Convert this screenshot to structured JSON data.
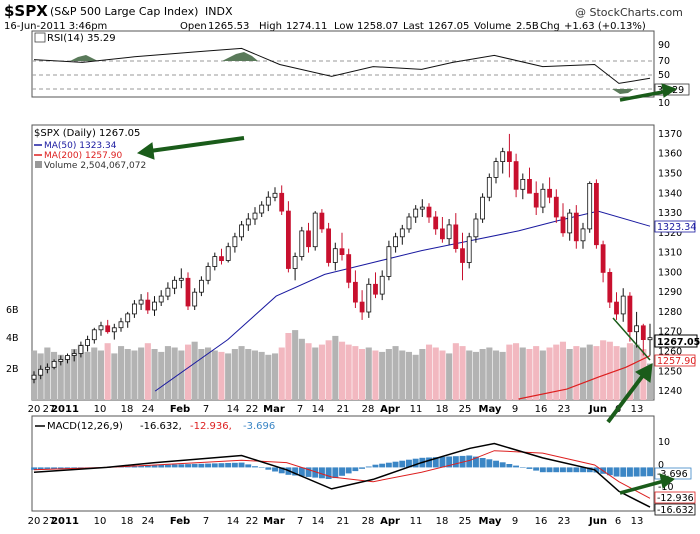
{
  "header": {
    "symbol": "$SPX",
    "name": "(S&P 500 Large Cap Index)",
    "exchange": "INDX",
    "watermark": "@ StockCharts.com",
    "date_time": "16-Jun-2011 3:46pm",
    "open_label": "Open",
    "open": "1265.53",
    "high_label": "High",
    "high": "1274.11",
    "low_label": "Low",
    "low": "1258.07",
    "last_label": "Last",
    "last": "1267.05",
    "volume_label": "Volume",
    "volume": "2.5B",
    "chg_label": "Chg",
    "chg": "+1.63 (+0.13%)"
  },
  "rsi_panel": {
    "legend": "RSI(14) 35.29",
    "scale_labels": [
      "90",
      "70",
      "50",
      "30",
      "10"
    ],
    "last_value": "35.29"
  },
  "price_panel": {
    "legend_title": "$SPX (Daily) 1267.05",
    "legend_ma50": "MA(50) 1323.34",
    "legend_ma200": "MA(200) 1257.90",
    "legend_volume": "Volume 2,504,067,072",
    "price_labels": [
      "1370",
      "1360",
      "1350",
      "1340",
      "1330",
      "1320",
      "1310",
      "1300",
      "1290",
      "1280",
      "1270",
      "1260",
      "1250",
      "1240"
    ],
    "volume_labels": [
      "6B",
      "4B",
      "2B"
    ],
    "tag_ma50": "1323.34",
    "tag_last": "1267.05",
    "tag_ma200": "1257.90"
  },
  "date_axis": {
    "labels": [
      "20",
      "27",
      "2011",
      "10",
      "18",
      "24",
      "Feb",
      "7",
      "14",
      "22",
      "Mar",
      "7",
      "14",
      "21",
      "28",
      "Apr",
      "11",
      "18",
      "25",
      "May",
      "9",
      "16",
      "23",
      "Jun",
      "6",
      "13"
    ]
  },
  "macd_panel": {
    "legend_name": "MACD(12,26,9)",
    "legend_macd": "-16.632,",
    "legend_signal": "-12.936,",
    "legend_hist": "-3.696",
    "scale_labels": [
      "10",
      "0",
      "-10"
    ],
    "tag_hist": "-3.696",
    "tag_signal": "-12.936",
    "tag_macd": "-16.632"
  },
  "colors": {
    "up_volume": "#f2b8c0",
    "gray_volume": "#b3b3b3",
    "ma50": "#1a1aa0",
    "ma200": "#dd1f1f",
    "candle_up": "#111111",
    "candle_down": "#c8102e",
    "histogram": "#3b86c5",
    "annotation_arrow": "#1a5c1a"
  },
  "chart_data": [
    {
      "type": "line",
      "name": "RSI(14)",
      "ylim": [
        0,
        100
      ],
      "guides": [
        70,
        50,
        30
      ],
      "x": [
        "2010-12-20",
        "2011-01-03",
        "2011-01-18",
        "2011-02-07",
        "2011-02-18",
        "2011-03-01",
        "2011-03-16",
        "2011-03-28",
        "2011-04-11",
        "2011-04-20",
        "2011-05-02",
        "2011-05-16",
        "2011-05-31",
        "2011-06-07",
        "2011-06-16"
      ],
      "values": [
        62,
        58,
        66,
        74,
        78,
        55,
        38,
        52,
        48,
        58,
        68,
        52,
        55,
        28,
        35.29
      ]
    },
    {
      "type": "candlestick",
      "title": "$SPX (Daily) 1267.05",
      "ylim": [
        1237,
        1373
      ],
      "candles": [
        [
          1246,
          1250,
          1244,
          1248
        ],
        [
          1248,
          1253,
          1246,
          1251
        ],
        [
          1251,
          1254,
          1249,
          1252
        ],
        [
          1252,
          1256,
          1251,
          1255
        ],
        [
          1255,
          1258,
          1253,
          1256
        ],
        [
          1256,
          1259,
          1254,
          1258
        ],
        [
          1258,
          1261,
          1255,
          1259
        ],
        [
          1259,
          1265,
          1257,
          1263
        ],
        [
          1263,
          1268,
          1260,
          1266
        ],
        [
          1266,
          1272,
          1264,
          1271
        ],
        [
          1271,
          1275,
          1268,
          1273
        ],
        [
          1273,
          1276,
          1269,
          1270
        ],
        [
          1270,
          1274,
          1266,
          1272
        ],
        [
          1272,
          1277,
          1270,
          1275
        ],
        [
          1275,
          1280,
          1272,
          1279
        ],
        [
          1279,
          1286,
          1277,
          1284
        ],
        [
          1284,
          1289,
          1281,
          1286
        ],
        [
          1286,
          1290,
          1279,
          1281
        ],
        [
          1281,
          1288,
          1278,
          1285
        ],
        [
          1285,
          1291,
          1283,
          1288
        ],
        [
          1288,
          1295,
          1286,
          1292
        ],
        [
          1292,
          1298,
          1289,
          1296
        ],
        [
          1296,
          1302,
          1292,
          1297
        ],
        [
          1297,
          1300,
          1281,
          1283
        ],
        [
          1283,
          1292,
          1281,
          1290
        ],
        [
          1290,
          1298,
          1288,
          1296
        ],
        [
          1296,
          1305,
          1294,
          1303
        ],
        [
          1303,
          1310,
          1301,
          1308
        ],
        [
          1308,
          1312,
          1304,
          1306
        ],
        [
          1306,
          1315,
          1305,
          1313
        ],
        [
          1313,
          1320,
          1310,
          1318
        ],
        [
          1318,
          1326,
          1316,
          1324
        ],
        [
          1324,
          1330,
          1321,
          1327
        ],
        [
          1327,
          1333,
          1324,
          1330
        ],
        [
          1330,
          1336,
          1328,
          1334
        ],
        [
          1334,
          1341,
          1331,
          1338
        ],
        [
          1338,
          1343,
          1336,
          1340
        ],
        [
          1340,
          1344,
          1329,
          1331
        ],
        [
          1331,
          1336,
          1300,
          1302
        ],
        [
          1302,
          1310,
          1296,
          1308
        ],
        [
          1308,
          1323,
          1306,
          1321
        ],
        [
          1321,
          1325,
          1310,
          1313
        ],
        [
          1313,
          1331,
          1311,
          1330
        ],
        [
          1330,
          1332,
          1320,
          1322
        ],
        [
          1322,
          1325,
          1303,
          1305
        ],
        [
          1305,
          1315,
          1301,
          1312
        ],
        [
          1312,
          1320,
          1306,
          1309
        ],
        [
          1309,
          1312,
          1292,
          1295
        ],
        [
          1295,
          1301,
          1282,
          1285
        ],
        [
          1285,
          1291,
          1276,
          1280
        ],
        [
          1280,
          1297,
          1277,
          1294
        ],
        [
          1294,
          1300,
          1287,
          1289
        ],
        [
          1289,
          1301,
          1286,
          1298
        ],
        [
          1298,
          1316,
          1296,
          1313
        ],
        [
          1313,
          1320,
          1310,
          1318
        ],
        [
          1318,
          1324,
          1314,
          1322
        ],
        [
          1322,
          1330,
          1320,
          1328
        ],
        [
          1328,
          1334,
          1325,
          1332
        ],
        [
          1332,
          1337,
          1328,
          1333
        ],
        [
          1333,
          1335,
          1325,
          1328
        ],
        [
          1328,
          1331,
          1319,
          1322
        ],
        [
          1322,
          1328,
          1315,
          1317
        ],
        [
          1317,
          1327,
          1314,
          1324
        ],
        [
          1324,
          1330,
          1310,
          1312
        ],
        [
          1312,
          1320,
          1296,
          1305
        ],
        [
          1305,
          1320,
          1302,
          1318
        ],
        [
          1318,
          1330,
          1315,
          1327
        ],
        [
          1327,
          1340,
          1325,
          1338
        ],
        [
          1338,
          1350,
          1336,
          1348
        ],
        [
          1348,
          1358,
          1345,
          1356
        ],
        [
          1356,
          1363,
          1350,
          1361
        ],
        [
          1361,
          1370,
          1348,
          1356
        ],
        [
          1356,
          1360,
          1338,
          1342
        ],
        [
          1342,
          1350,
          1337,
          1347
        ],
        [
          1347,
          1353,
          1340,
          1340
        ],
        [
          1340,
          1346,
          1329,
          1333
        ],
        [
          1333,
          1345,
          1330,
          1342
        ],
        [
          1342,
          1348,
          1335,
          1338
        ],
        [
          1338,
          1342,
          1325,
          1328
        ],
        [
          1328,
          1335,
          1318,
          1320
        ],
        [
          1320,
          1332,
          1316,
          1330
        ],
        [
          1330,
          1334,
          1312,
          1316
        ],
        [
          1316,
          1325,
          1312,
          1322
        ],
        [
          1322,
          1346,
          1320,
          1345
        ],
        [
          1345,
          1347,
          1312,
          1314
        ],
        [
          1314,
          1316,
          1295,
          1300
        ],
        [
          1300,
          1302,
          1282,
          1285
        ],
        [
          1285,
          1290,
          1276,
          1279
        ],
        [
          1279,
          1292,
          1275,
          1288
        ],
        [
          1288,
          1290,
          1265,
          1270
        ],
        [
          1270,
          1280,
          1262,
          1273
        ],
        [
          1273,
          1274,
          1258,
          1266
        ],
        [
          1266,
          1274,
          1258,
          1267
        ]
      ]
    },
    {
      "type": "line",
      "name": "MA(50)",
      "x": [
        "2011-01-24",
        "2011-02-14",
        "2011-02-28",
        "2011-03-14",
        "2011-03-28",
        "2011-04-11",
        "2011-04-25",
        "2011-05-09",
        "2011-05-20",
        "2011-06-01",
        "2011-06-16"
      ],
      "values": [
        1240,
        1266,
        1288,
        1299,
        1305,
        1311,
        1316,
        1321,
        1326,
        1331,
        1323.34
      ]
    },
    {
      "type": "line",
      "name": "MA(200)",
      "x": [
        "2011-05-09",
        "2011-05-23",
        "2011-06-01",
        "2011-06-09",
        "2011-06-16"
      ],
      "values": [
        1236,
        1241,
        1247,
        1252,
        1257.9
      ]
    },
    {
      "type": "bar",
      "name": "Volume",
      "unit": "B",
      "ylim": [
        0,
        7
      ],
      "values": [
        3.4,
        3.2,
        3.6,
        3.3,
        3.1,
        3.0,
        3.5,
        3.8,
        3.3,
        3.6,
        3.4,
        3.9,
        3.2,
        3.7,
        3.5,
        3.4,
        3.6,
        3.9,
        3.5,
        3.3,
        3.7,
        3.6,
        3.4,
        3.8,
        4.0,
        3.5,
        3.6,
        3.4,
        3.3,
        3.2,
        3.5,
        3.7,
        3.5,
        3.4,
        3.3,
        3.1,
        3.2,
        3.6,
        4.6,
        4.8,
        4.2,
        3.9,
        3.6,
        3.8,
        4.1,
        4.4,
        4.0,
        3.8,
        3.7,
        3.5,
        3.6,
        3.4,
        3.3,
        3.5,
        3.7,
        3.4,
        3.3,
        3.1,
        3.5,
        3.8,
        3.6,
        3.4,
        3.2,
        3.9,
        3.7,
        3.4,
        3.3,
        3.5,
        3.6,
        3.4,
        3.3,
        3.8,
        3.9,
        3.6,
        3.5,
        3.7,
        3.4,
        3.6,
        3.8,
        4.0,
        3.5,
        3.7,
        3.6,
        3.8,
        3.7,
        4.1,
        4.0,
        3.7,
        3.6,
        3.9,
        3.8,
        3.5,
        2.5
      ]
    },
    {
      "type": "line",
      "name": "MACD(12,26,9)",
      "ylim": [
        -17,
        14
      ],
      "x": [
        "2010-12-20",
        "2011-01-10",
        "2011-01-24",
        "2011-02-18",
        "2011-03-03",
        "2011-03-16",
        "2011-03-28",
        "2011-04-11",
        "2011-04-25",
        "2011-05-02",
        "2011-05-16",
        "2011-05-31",
        "2011-06-07",
        "2011-06-16"
      ],
      "macd": [
        -2,
        0,
        2,
        5,
        -1,
        -9,
        -5,
        2,
        8,
        10,
        4,
        -1,
        -10,
        -16.632
      ],
      "signal": [
        -1,
        0,
        1,
        3,
        2,
        -4,
        -6,
        -2,
        3,
        7,
        6,
        1,
        -6,
        -12.936
      ],
      "histogram": [
        -1,
        0,
        1,
        2,
        -3,
        -5,
        1,
        4,
        5,
        3,
        -2,
        -2,
        -4,
        -3.696
      ]
    }
  ]
}
